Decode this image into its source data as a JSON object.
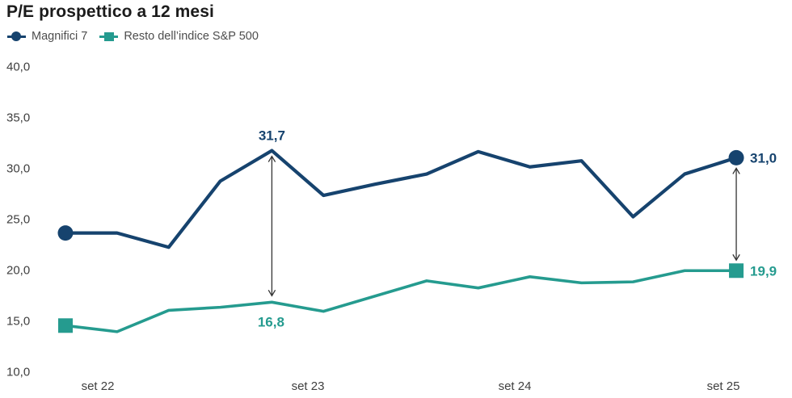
{
  "title": "P/E prospettico a 12 mesi",
  "legend": {
    "items": [
      {
        "label": "Magnifici 7",
        "color": "#16436E",
        "marker": "circle"
      },
      {
        "label": "Resto dell’indice S&P 500",
        "color": "#259B8F",
        "marker": "square"
      }
    ]
  },
  "chart_data": {
    "type": "line",
    "title": "P/E prospettico a 12 mesi",
    "ylim": [
      10,
      40
    ],
    "grid": false,
    "legend_position": "top-left",
    "x_period": "quarterly",
    "y_ticks": [
      {
        "label": "40,0",
        "value": 40
      },
      {
        "label": "35,0",
        "value": 35
      },
      {
        "label": "30,0",
        "value": 30
      },
      {
        "label": "25,0",
        "value": 25
      },
      {
        "label": "20,0",
        "value": 20
      },
      {
        "label": "15,0",
        "value": 15
      },
      {
        "label": "10,0",
        "value": 10
      }
    ],
    "x_ticks": [
      {
        "label": "set 22",
        "point_index": 1
      },
      {
        "label": "set 23",
        "point_index": 5
      },
      {
        "label": "set 24",
        "point_index": 9
      },
      {
        "label": "set 25",
        "point_index": 13
      }
    ],
    "series": [
      {
        "name": "Magnifici 7",
        "color": "#16436E",
        "marker": "circle",
        "marker_on": "ends",
        "values": [
          23.6,
          23.6,
          22.2,
          28.7,
          31.7,
          27.3,
          28.4,
          29.4,
          31.6,
          30.1,
          30.7,
          25.2,
          29.4,
          31.0
        ]
      },
      {
        "name": "Resto dell’indice S&P 500",
        "color": "#259B8F",
        "marker": "square",
        "marker_on": "ends",
        "values": [
          14.5,
          13.9,
          16.0,
          16.3,
          16.8,
          15.9,
          17.4,
          18.9,
          18.2,
          19.3,
          18.7,
          18.8,
          19.9,
          19.9
        ]
      }
    ],
    "annotations": [
      {
        "type": "spread-arrow",
        "point_index": 4,
        "arrow_color": "#333333",
        "labels": [
          {
            "series": 0,
            "text": "31,7",
            "placement": "above"
          },
          {
            "series": 1,
            "text": "16,8",
            "placement": "below"
          }
        ]
      },
      {
        "type": "spread-arrow",
        "point_index": 13,
        "arrow_color": "#333333",
        "labels": [
          {
            "series": 0,
            "text": "31,0",
            "placement": "right"
          },
          {
            "series": 1,
            "text": "19,9",
            "placement": "right"
          }
        ]
      }
    ]
  }
}
